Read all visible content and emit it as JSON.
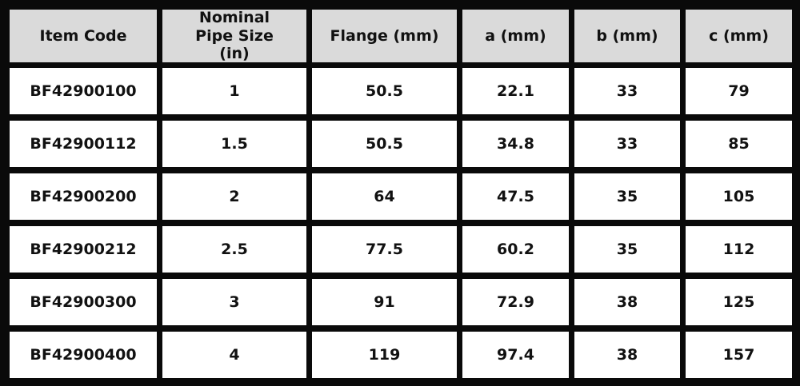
{
  "table": {
    "header": [
      "Item Code",
      "Nominal Pipe Size (in)",
      "Flange (mm)",
      "a (mm)",
      "b (mm)",
      "c (mm)"
    ],
    "rows": [
      [
        "BF42900100",
        "1",
        "50.5",
        "22.1",
        "33",
        "79"
      ],
      [
        "BF42900112",
        "1.5",
        "50.5",
        "34.8",
        "33",
        "85"
      ],
      [
        "BF42900200",
        "2",
        "64",
        "47.5",
        "35",
        "105"
      ],
      [
        "BF42900212",
        "2.5",
        "77.5",
        "60.2",
        "35",
        "112"
      ],
      [
        "BF42900300",
        "3",
        "91",
        "72.9",
        "38",
        "125"
      ],
      [
        "BF42900400",
        "4",
        "119",
        "97.4",
        "38",
        "157"
      ]
    ]
  }
}
